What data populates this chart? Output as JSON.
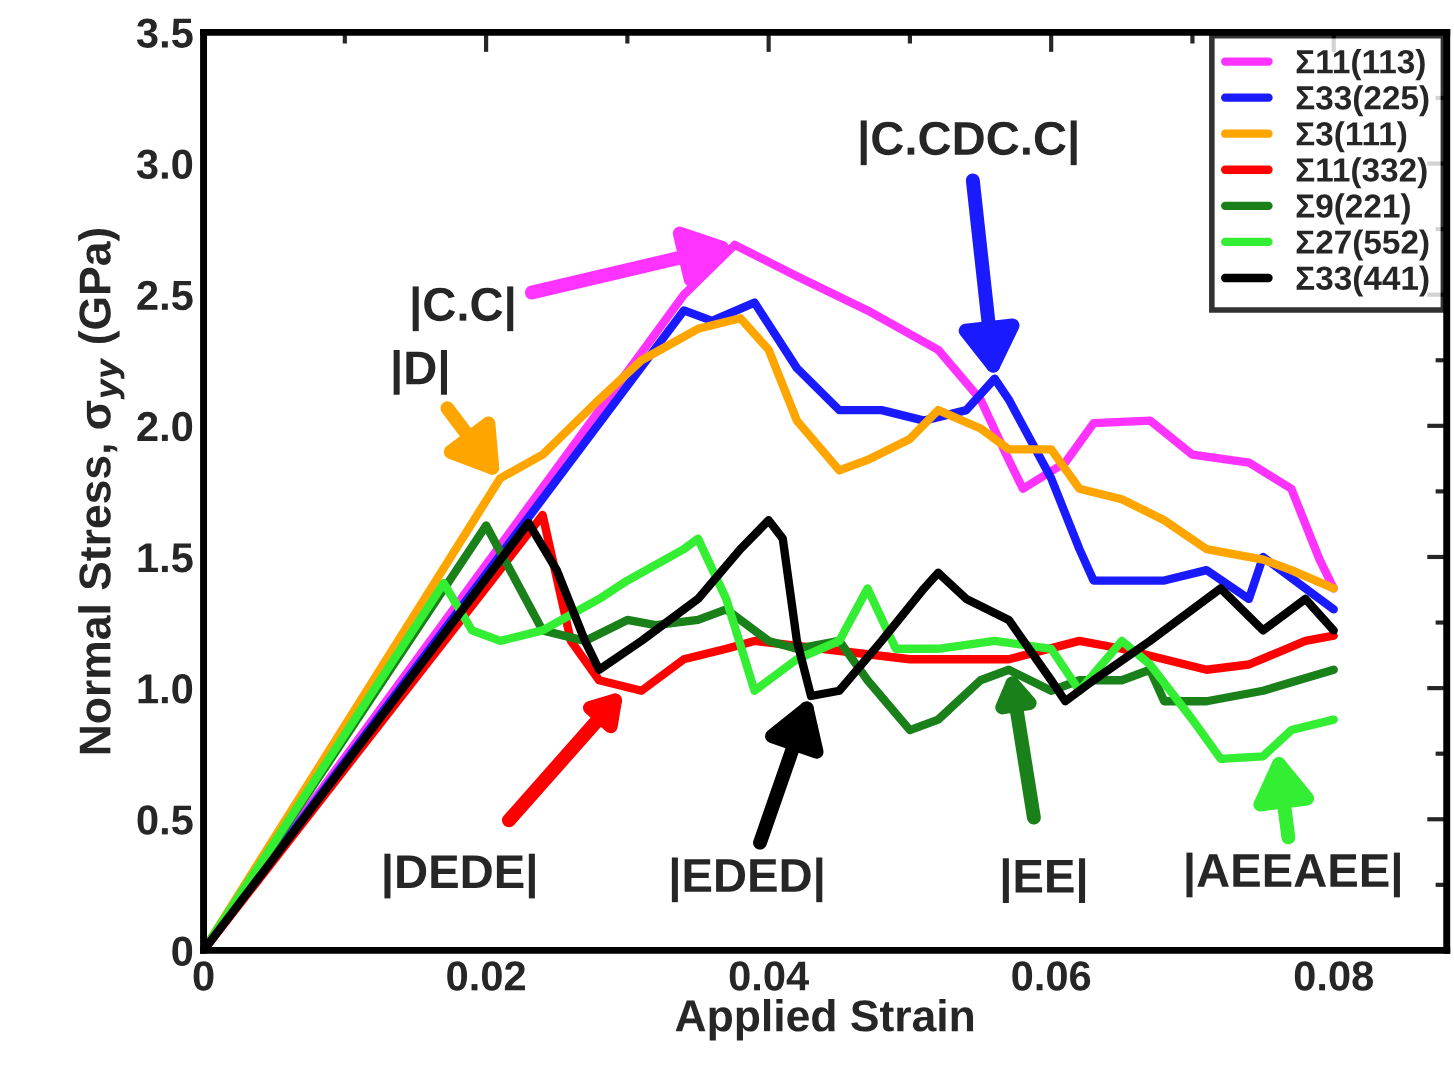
{
  "chart_data": {
    "type": "line",
    "xlabel": "Applied Strain",
    "ylabel": "Normal Stress, σ$_{yy}$ (GPa)",
    "xlim": [
      0,
      0.088
    ],
    "ylim": [
      0,
      3.5
    ],
    "xticks": [
      0,
      0.02,
      0.04,
      0.06,
      0.08
    ],
    "yticks": [
      0,
      0.5,
      {
        "value": 1,
        "label": "1.0"
      },
      1.5,
      {
        "value": 2,
        "label": "2.0"
      },
      2.5,
      {
        "value": 3,
        "label": "3.0"
      },
      3.5
    ],
    "grid": false,
    "legend": "top right",
    "marker": "none",
    "line_style": "solid",
    "series": [
      {
        "name": "Σ11(113)",
        "color": "#ff33ff",
        "x": [
          0,
          0.034,
          0.0376,
          0.042,
          0.047,
          0.052,
          0.055,
          0.057,
          0.058,
          0.061,
          0.063,
          0.067,
          0.07,
          0.074,
          0.077,
          0.079,
          0.08
        ],
        "values": [
          0,
          2.5,
          2.69,
          2.57,
          2.44,
          2.29,
          2.1,
          1.87,
          1.76,
          1.86,
          2.01,
          2.02,
          1.89,
          1.86,
          1.76,
          1.49,
          1.38
        ]
      },
      {
        "name": "Σ33(225)",
        "color": "#1a1aff",
        "x": [
          0,
          0.034,
          0.036,
          0.039,
          0.042,
          0.045,
          0.048,
          0.051,
          0.054,
          0.056,
          0.057,
          0.06,
          0.062,
          0.063,
          0.068,
          0.071,
          0.074,
          0.075,
          0.08
        ],
        "values": [
          0,
          2.44,
          2.4,
          2.47,
          2.22,
          2.06,
          2.06,
          2.02,
          2.06,
          2.18,
          2.1,
          1.8,
          1.53,
          1.41,
          1.41,
          1.45,
          1.34,
          1.5,
          1.3
        ]
      },
      {
        "name": "Σ3(111)",
        "color": "#ffa500",
        "x": [
          0,
          0.021,
          0.024,
          0.028,
          0.031,
          0.035,
          0.038,
          0.04,
          0.042,
          0.045,
          0.047,
          0.05,
          0.052,
          0.055,
          0.057,
          0.06,
          0.062,
          0.065,
          0.068,
          0.071,
          0.075,
          0.077,
          0.08
        ],
        "values": [
          0,
          1.8,
          1.89,
          2.1,
          2.25,
          2.37,
          2.41,
          2.29,
          2.02,
          1.83,
          1.87,
          1.95,
          2.06,
          1.99,
          1.91,
          1.91,
          1.76,
          1.72,
          1.64,
          1.53,
          1.49,
          1.45,
          1.38
        ]
      },
      {
        "name": "Σ11(332)",
        "color": "#ff0000",
        "x": [
          0,
          0.024,
          0.026,
          0.028,
          0.031,
          0.034,
          0.037,
          0.039,
          0.05,
          0.057,
          0.062,
          0.065,
          0.068,
          0.071,
          0.074,
          0.078,
          0.08
        ],
        "values": [
          0,
          1.66,
          1.18,
          1.03,
          0.99,
          1.11,
          1.15,
          1.18,
          1.11,
          1.11,
          1.18,
          1.15,
          1.11,
          1.07,
          1.09,
          1.18,
          1.2
        ]
      },
      {
        "name": "Σ9(221)",
        "color": "#1a801a",
        "x": [
          0,
          0.02,
          0.024,
          0.027,
          0.03,
          0.032,
          0.035,
          0.037,
          0.04,
          0.042,
          0.045,
          0.047,
          0.05,
          0.052,
          0.055,
          0.057,
          0.06,
          0.062,
          0.065,
          0.067,
          0.068,
          0.071,
          0.075,
          0.08
        ],
        "values": [
          0,
          1.62,
          1.22,
          1.18,
          1.26,
          1.24,
          1.26,
          1.3,
          1.18,
          1.15,
          1.18,
          1.03,
          0.84,
          0.88,
          1.03,
          1.07,
          0.99,
          1.03,
          1.03,
          1.07,
          0.95,
          0.95,
          0.99,
          1.07
        ]
      },
      {
        "name": "Σ27(552)",
        "color": "#33ee33",
        "x": [
          0,
          0.017,
          0.019,
          0.021,
          0.024,
          0.028,
          0.03,
          0.034,
          0.035,
          0.037,
          0.039,
          0.042,
          0.045,
          0.047,
          0.049,
          0.052,
          0.056,
          0.06,
          0.062,
          0.065,
          0.067,
          0.07,
          0.072,
          0.075,
          0.077,
          0.08
        ],
        "values": [
          0,
          1.4,
          1.22,
          1.18,
          1.22,
          1.34,
          1.41,
          1.53,
          1.57,
          1.34,
          0.99,
          1.11,
          1.18,
          1.38,
          1.15,
          1.15,
          1.18,
          1.15,
          0.99,
          1.18,
          1.09,
          0.88,
          0.73,
          0.74,
          0.84,
          0.88
        ]
      },
      {
        "name": "Σ33(441)",
        "color": "#000000",
        "x": [
          0,
          0.023,
          0.025,
          0.027,
          0.028,
          0.031,
          0.035,
          0.038,
          0.04,
          0.041,
          0.042,
          0.043,
          0.045,
          0.048,
          0.051,
          0.052,
          0.054,
          0.057,
          0.06,
          0.061,
          0.063,
          0.067,
          0.07,
          0.072,
          0.075,
          0.078,
          0.08
        ],
        "values": [
          0,
          1.63,
          1.45,
          1.18,
          1.07,
          1.18,
          1.34,
          1.53,
          1.64,
          1.57,
          1.18,
          0.97,
          0.99,
          1.18,
          1.38,
          1.44,
          1.34,
          1.26,
          1.03,
          0.95,
          1.03,
          1.18,
          1.3,
          1.38,
          1.22,
          1.34,
          1.22
        ]
      }
    ],
    "annotations": [
      {
        "text": "|C.C|",
        "x": 0.0376,
        "y": 2.69
      },
      {
        "text": "|D|",
        "x": 0.021,
        "y": 1.8
      },
      {
        "text": "|C.CDC.C|",
        "x": 0.056,
        "y": 2.18
      },
      "|DEDE|",
      {
        "text": "|EDED|",
        "x": 0.043,
        "y": 0.97
      },
      "|EE|",
      {
        "text": "|AEEAEE|",
        "x": 0.076,
        "y": 0.76
      }
    ]
  }
}
